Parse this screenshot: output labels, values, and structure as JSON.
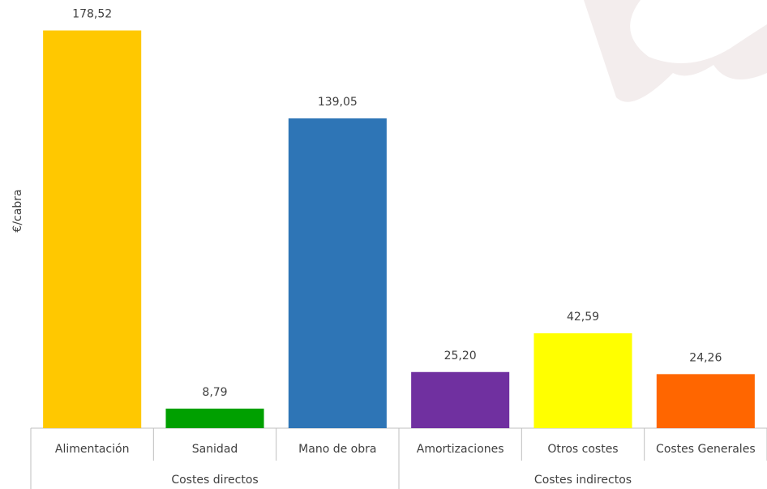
{
  "chart_data": {
    "type": "bar",
    "y_label": "€/cabra",
    "categories": [
      "Alimentación",
      "Sanidad",
      "Mano de obra",
      "Amortizaciones",
      "Otros costes",
      "Costes Generales"
    ],
    "values": [
      178.52,
      8.79,
      139.05,
      25.2,
      42.59,
      24.26
    ],
    "value_labels": [
      "178,52",
      "8,79",
      "139,05",
      "25,20",
      "42,59",
      "24,26"
    ],
    "colors": [
      "#ffc800",
      "#00a000",
      "#2e75b6",
      "#7030a0",
      "#ffff00",
      "#ff6600"
    ],
    "groups": [
      {
        "name": "Costes directos",
        "size": 3
      },
      {
        "name": "Costes indirectos",
        "size": 3
      }
    ],
    "ylim": [
      0,
      190
    ]
  }
}
